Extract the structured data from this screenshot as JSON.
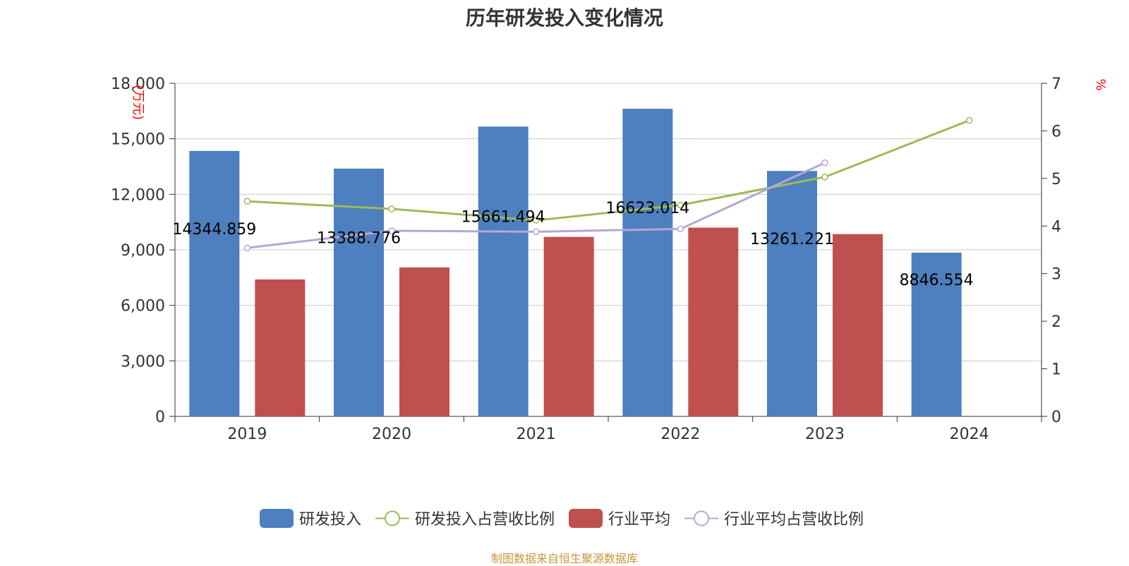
{
  "title": "历年研发投入变化情况",
  "source_note": "制图数据来自恒生聚源数据库",
  "colors": {
    "rd_bar": "#4e7fbe",
    "industry_bar": "#c0504e",
    "rd_ratio_line": "#9bbb59",
    "industry_ratio_line": "#b4a7d6",
    "unit_label": "#ff0000",
    "axis_text": "#333333",
    "grid": "#cccccc"
  },
  "legend": [
    {
      "label": "研发投入",
      "kind": "bar",
      "color": "#4e7fbe"
    },
    {
      "label": "研发投入占营收比例",
      "kind": "line",
      "color": "#9bbb59"
    },
    {
      "label": "行业平均",
      "kind": "bar",
      "color": "#c0504e"
    },
    {
      "label": "行业平均占营收比例",
      "kind": "line",
      "color": "#b4a7d6"
    }
  ],
  "chart_data": {
    "type": "bar",
    "categories": [
      "2019",
      "2020",
      "2021",
      "2022",
      "2023",
      "2024"
    ],
    "y_left": {
      "unit": "万元",
      "min": 0,
      "max": 18000,
      "ticks": [
        0,
        3000,
        6000,
        9000,
        12000,
        15000,
        18000
      ],
      "tick_labels": [
        "0",
        "3,000",
        "6,000",
        "9,000",
        "12,000",
        "15,000",
        "18,000"
      ]
    },
    "y_right": {
      "unit": "%",
      "min": 0,
      "max": 7,
      "ticks": [
        0,
        1,
        2,
        3,
        4,
        5,
        6,
        7
      ],
      "tick_labels": [
        "0",
        "1",
        "2",
        "3",
        "4",
        "5",
        "6",
        "7"
      ]
    },
    "grid": true,
    "legend_position": "bottom",
    "series": [
      {
        "name": "研发投入",
        "type": "bar",
        "axis": "left",
        "values": [
          14344.859,
          13388.776,
          15661.494,
          16623.014,
          13261.221,
          8846.554
        ],
        "data_labels": [
          "14344.859",
          "13388.776",
          "15661.494",
          "16623.014",
          "13261.221",
          "8846.554"
        ]
      },
      {
        "name": "行业平均",
        "type": "bar",
        "axis": "left",
        "values": [
          7400,
          8050,
          9700,
          10200,
          9850,
          null
        ]
      },
      {
        "name": "研发投入占营收比例",
        "type": "line",
        "axis": "right",
        "values": [
          4.52,
          4.36,
          4.12,
          4.44,
          5.03,
          6.22
        ]
      },
      {
        "name": "行业平均占营收比例",
        "type": "line",
        "axis": "right",
        "values": [
          3.54,
          3.9,
          3.88,
          3.94,
          5.33,
          null
        ]
      }
    ]
  }
}
